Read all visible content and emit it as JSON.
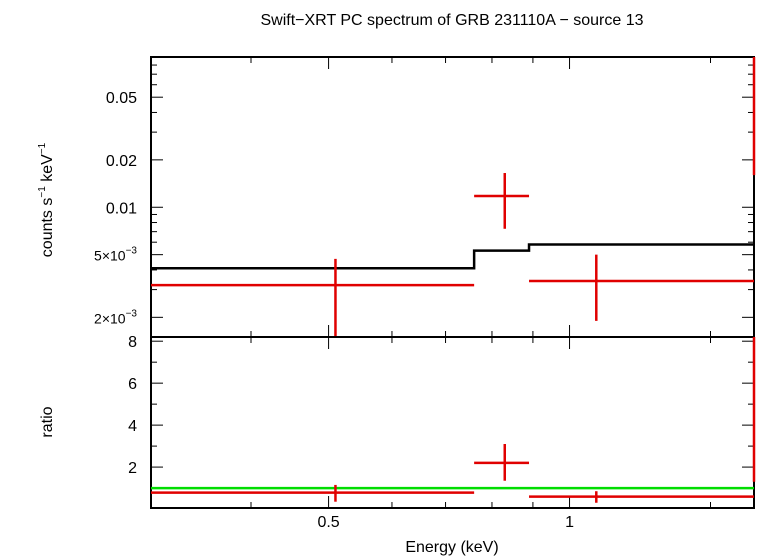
{
  "chart_data": [
    {
      "type": "scatter",
      "panel": "spectrum",
      "title": "Swift−XRT PC spectrum of GRB 231110A − source 13",
      "ylabel_main": "counts s",
      "ylabel_sup1": "−1",
      "ylabel_mid": " keV",
      "ylabel_sup2": "−1",
      "xscale": "log",
      "yscale": "log",
      "xlim": [
        0.3,
        1.7
      ],
      "ylim": [
        0.0015,
        0.09
      ],
      "yticks": [
        {
          "value": 0.05,
          "label": "0.05"
        },
        {
          "value": 0.02,
          "label": "0.02"
        },
        {
          "value": 0.01,
          "label": "0.01"
        },
        {
          "value": 0.005,
          "base": "5×10",
          "exp": "−3"
        },
        {
          "value": 0.002,
          "base": "2×10",
          "exp": "−3"
        }
      ],
      "series": [
        {
          "kind": "data",
          "color": "#e00000",
          "points": [
            {
              "x": 0.51,
              "xlo": 0.3,
              "xhi": 0.76,
              "y": 0.0032,
              "ylo": 0.0015,
              "yhi": 0.0047
            },
            {
              "x": 0.83,
              "xlo": 0.76,
              "xhi": 0.89,
              "y": 0.0118,
              "ylo": 0.0073,
              "yhi": 0.0165
            },
            {
              "x": 1.08,
              "xlo": 0.89,
              "xhi": 1.7,
              "y": 0.0034,
              "ylo": 0.0019,
              "yhi": 0.005
            },
            {
              "x": 1.7,
              "xlo": 1.7,
              "xhi": 1.7,
              "y": 0.06,
              "ylo": 0.016,
              "yhi": 0.09
            }
          ]
        },
        {
          "kind": "model",
          "color": "#000000",
          "steps": [
            {
              "xlo": 0.3,
              "xhi": 0.76,
              "y": 0.0041
            },
            {
              "xlo": 0.76,
              "xhi": 0.89,
              "y": 0.0053
            },
            {
              "xlo": 0.89,
              "xhi": 1.7,
              "y": 0.0058
            }
          ]
        }
      ]
    },
    {
      "type": "scatter",
      "panel": "ratio",
      "xlabel": "Energy (keV)",
      "ylabel": "ratio",
      "xscale": "log",
      "yscale": "linear",
      "xlim": [
        0.3,
        1.7
      ],
      "ylim": [
        0.05,
        8.2
      ],
      "xticks": [
        {
          "value": 0.5,
          "label": "0.5"
        },
        {
          "value": 1,
          "label": "1"
        }
      ],
      "yticks": [
        {
          "value": 8,
          "label": "8"
        },
        {
          "value": 6,
          "label": "6"
        },
        {
          "value": 4,
          "label": "4"
        },
        {
          "value": 2,
          "label": "2"
        }
      ],
      "reference_line": {
        "y": 1,
        "color": "#00dd00"
      },
      "series": [
        {
          "kind": "data",
          "color": "#e00000",
          "points": [
            {
              "x": 0.51,
              "xlo": 0.3,
              "xhi": 0.76,
              "y": 0.78,
              "ylo": 0.35,
              "yhi": 1.15
            },
            {
              "x": 0.83,
              "xlo": 0.76,
              "xhi": 0.89,
              "y": 2.2,
              "ylo": 1.35,
              "yhi": 3.1
            },
            {
              "x": 1.08,
              "xlo": 0.89,
              "xhi": 1.7,
              "y": 0.59,
              "ylo": 0.3,
              "yhi": 0.85
            },
            {
              "x": 1.7,
              "xlo": 1.7,
              "xhi": 1.7,
              "y": 5,
              "ylo": 1.3,
              "yhi": 8.2
            }
          ]
        }
      ]
    }
  ]
}
